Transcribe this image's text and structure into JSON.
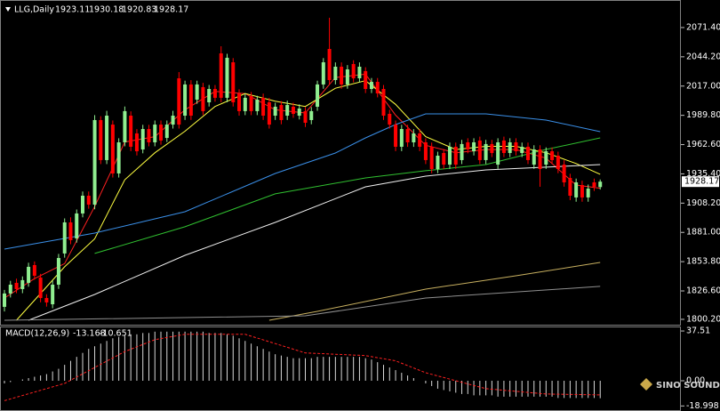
{
  "chart_data": [
    {
      "type": "candlestick",
      "title": "LLG,Daily",
      "up_color": "#90ee90",
      "down_color": "#ff0000",
      "open": [
        1811.8,
        1824.2,
        1834.1,
        1828.3,
        1834.1,
        1850.6,
        1839.0,
        1820.0,
        1814.2,
        1832.4,
        1861.4,
        1890.3,
        1875.4,
        1898.6,
        1915.1,
        1906.8,
        1985.4,
        1948.2,
        1981.2,
        1935.8,
        1964.7,
        1989.5,
        1973.0,
        1958.1,
        1977.1,
        1964.7,
        1981.2,
        1968.8,
        1981.2,
        2024.2,
        1989.5,
        2018.5,
        2004.4,
        2016.0,
        2001.9,
        2014.3,
        2047.4,
        2006.1,
        2039.1,
        2010.2,
        1993.7,
        2007.7,
        1993.7,
        2006.1,
        2001.9,
        1989.5,
        1999.4,
        1989.5,
        1997.8,
        1989.5,
        1993.7,
        1985.4,
        1997.8,
        2018.5,
        2051.5,
        2022.6,
        2035.0,
        2018.5,
        2037.5,
        2024.2,
        2030.9,
        2014.3,
        2020.9,
        2014.3,
        1991.2,
        1981.2,
        1960.6,
        1977.1,
        1964.7,
        1973.0,
        1964.7,
        1960.6,
        1939.9,
        1954.8,
        1944.0,
        1960.6,
        1948.2,
        1964.7,
        1956.4,
        1966.4,
        1948.2,
        1963.1,
        1944.0,
        1966.4,
        1954.8,
        1964.7,
        1954.8,
        1960.6,
        1944.0,
        1958.1,
        1944.0,
        1956.4,
        1952.3,
        1944.0,
        1931.6,
        1913.5,
        1925.0,
        1913.5,
        1927.5,
        1923.11
      ],
      "high": [
        1827.5,
        1836.0,
        1838.0,
        1840.1,
        1852.8,
        1854.0,
        1842.5,
        1823.5,
        1836.2,
        1861.0,
        1894.0,
        1895.0,
        1902.3,
        1919.0,
        1919.0,
        1990.0,
        1989.0,
        1994.0,
        1985.0,
        1968.5,
        1998.0,
        1993.5,
        1977.0,
        1981.0,
        1981.0,
        1985.0,
        1985.0,
        1985.0,
        1994.0,
        2030.0,
        2022.0,
        2022.5,
        2022.0,
        2020.0,
        2018.0,
        2018.0,
        2054.0,
        2047.0,
        2043.0,
        2014.0,
        2010.0,
        2011.5,
        2008.0,
        2010.0,
        2006.0,
        2001.5,
        2003.0,
        2003.5,
        2001.5,
        2000.0,
        1997.5,
        1997.5,
        2022.0,
        2043.0,
        2080.5,
        2039.0,
        2039.0,
        2036.5,
        2041.0,
        2039.0,
        2034.5,
        2024.5,
        2024.5,
        2018.0,
        1995.0,
        1985.0,
        1981.0,
        1981.0,
        1977.0,
        1977.0,
        1968.5,
        1964.5,
        1956.0,
        1958.5,
        1964.5,
        1964.5,
        1967.0,
        1968.5,
        1968.5,
        1970.0,
        1967.0,
        1967.0,
        1968.5,
        1970.0,
        1968.5,
        1968.5,
        1964.5,
        1964.5,
        1962.0,
        1962.0,
        1960.0,
        1960.0,
        1956.0,
        1948.0,
        1935.5,
        1931.0,
        1929.0,
        1925.5,
        1931.0,
        1930.18
      ],
      "low": [
        1807.5,
        1820.5,
        1824.5,
        1824.5,
        1830.5,
        1837.0,
        1816.0,
        1812.0,
        1810.5,
        1828.5,
        1857.5,
        1870.0,
        1871.5,
        1895.0,
        1903.0,
        1902.5,
        1944.5,
        1944.5,
        1932.0,
        1932.0,
        1961.0,
        1956.5,
        1952.5,
        1954.5,
        1961.0,
        1961.0,
        1962.5,
        1965.0,
        1977.5,
        1977.5,
        1985.5,
        1985.5,
        2000.5,
        1990.0,
        1998.0,
        2002.5,
        2002.0,
        2002.0,
        1998.0,
        1989.5,
        1990.0,
        1990.0,
        1990.0,
        1985.5,
        1977.5,
        1985.5,
        1981.5,
        1985.5,
        1987.5,
        1986.0,
        1979.0,
        1981.5,
        1994.0,
        2014.5,
        2018.5,
        2018.5,
        2014.5,
        2014.5,
        2020.5,
        2020.5,
        2010.5,
        2010.5,
        2006.5,
        1985.5,
        1977.5,
        1956.5,
        1956.5,
        1960.5,
        1960.5,
        1956.5,
        1944.5,
        1936.0,
        1936.0,
        1940.0,
        1940.0,
        1940.0,
        1944.5,
        1954.5,
        1952.5,
        1944.5,
        1944.5,
        1951.0,
        1940.0,
        1951.0,
        1951.0,
        1952.5,
        1951.0,
        1944.5,
        1940.0,
        1923.4,
        1940.0,
        1944.5,
        1936.0,
        1923.5,
        1911.0,
        1909.5,
        1909.5,
        1909.5,
        1919.5,
        1920.83
      ],
      "close": [
        1824.2,
        1832.4,
        1828.3,
        1836.6,
        1849.0,
        1840.7,
        1820.0,
        1815.9,
        1832.4,
        1857.2,
        1890.3,
        1873.8,
        1898.6,
        1915.1,
        1906.8,
        1985.4,
        1948.2,
        1989.5,
        1935.8,
        1964.7,
        1993.7,
        1960.6,
        1956.4,
        1977.1,
        1964.7,
        1981.2,
        1966.4,
        1981.2,
        1989.5,
        1981.2,
        2018.5,
        1989.5,
        2018.5,
        1993.7,
        2014.3,
        2006.1,
        2006.1,
        2043.3,
        2001.9,
        1993.7,
        2006.1,
        1993.7,
        2004.4,
        1989.5,
        1981.2,
        1997.8,
        1985.4,
        1999.4,
        1991.2,
        1996.1,
        1982.9,
        1993.7,
        2018.5,
        2039.1,
        2022.6,
        2035.0,
        2018.5,
        2032.5,
        2024.2,
        2035.0,
        2014.3,
        2020.9,
        2010.2,
        1989.5,
        1981.2,
        1960.6,
        1977.1,
        1964.7,
        1973.0,
        1960.6,
        1948.2,
        1939.9,
        1952.3,
        1944.0,
        1960.6,
        1944.0,
        1963.1,
        1958.1,
        1964.7,
        1948.2,
        1963.1,
        1954.8,
        1964.7,
        1954.8,
        1964.7,
        1956.4,
        1960.6,
        1948.2,
        1958.1,
        1939.9,
        1956.4,
        1948.2,
        1939.9,
        1927.5,
        1915.1,
        1927.5,
        1913.5,
        1921.7,
        1923.4,
        1928.17
      ],
      "lines": [
        {
          "color": "#ff2020",
          "x": [
            0,
            5,
            10,
            15,
            20,
            25,
            30,
            35,
            40,
            45,
            50,
            55,
            60,
            65,
            70,
            75,
            80,
            85,
            90,
            95,
            99
          ],
          "values": [
            1820,
            1838,
            1852,
            1905,
            1965,
            1970,
            1995,
            2012,
            2010,
            1995,
            1992,
            2025,
            2028,
            1990,
            1962,
            1955,
            1958,
            1958,
            1950,
            1925,
            1922
          ]
        },
        {
          "color": "#ffff40",
          "x": [
            2,
            10,
            15,
            20,
            25,
            30,
            35,
            40,
            45,
            50,
            55,
            60,
            65,
            70,
            75,
            80,
            85,
            90,
            95,
            99
          ],
          "values": [
            1799.3,
            1849,
            1875,
            1930,
            1955,
            1975,
            1998,
            2010,
            2003,
            1998,
            2015,
            2022,
            2000,
            1970,
            1958,
            1961,
            1961,
            1955,
            1945,
            1935
          ]
        },
        {
          "color": "#3a8fe8",
          "x": [
            0,
            15,
            30,
            45,
            55,
            60,
            65,
            70,
            80,
            90,
            99
          ],
          "values": [
            1865.5,
            1880.4,
            1900.2,
            1935.8,
            1954.8,
            1968.8,
            1981.2,
            1991.2,
            1991.2,
            1985.4,
            1974.6
          ]
        },
        {
          "color": "#30c030",
          "x": [
            15,
            30,
            45,
            60,
            70,
            80,
            90,
            99
          ],
          "values": [
            1861.4,
            1886.2,
            1916.8,
            1931.6,
            1938.3,
            1944.0,
            1958.1,
            1968.8
          ]
        },
        {
          "color": "#f0f0f0",
          "x": [
            4,
            15,
            30,
            45,
            60,
            70,
            80,
            90,
            99
          ],
          "values": [
            1799.3,
            1823.3,
            1859.7,
            1890.3,
            1923.4,
            1933.3,
            1939.1,
            1941.6,
            1944.0
          ]
        },
        {
          "color": "#c8b060",
          "x": [
            44,
            52,
            70,
            85,
            99
          ],
          "values": [
            1799.3,
            1807.6,
            1828.3,
            1840.7,
            1853.1
          ]
        },
        {
          "color": "#909090",
          "x": [
            0,
            50,
            70,
            99
          ],
          "values": [
            1799.3,
            1803.5,
            1820.0,
            1830.8
          ]
        }
      ],
      "ylim": [
        1795.2,
        2097.0
      ],
      "yticks": [
        {
          "value": 2071.4,
          "label": "2071.40"
        },
        {
          "value": 2044.2,
          "label": "2044.20"
        },
        {
          "value": 2017.0,
          "label": "2017.00"
        },
        {
          "value": 1989.8,
          "label": "1989.80"
        },
        {
          "value": 1962.6,
          "label": "1962.60"
        },
        {
          "value": 1935.4,
          "label": "1935.40"
        },
        {
          "value": 1908.2,
          "label": "1908.20"
        },
        {
          "value": 1881.0,
          "label": "1881.00"
        },
        {
          "value": 1853.8,
          "label": "1853.80"
        },
        {
          "value": 1826.6,
          "label": "1826.60"
        },
        {
          "value": 1800.2,
          "label": "1800.20"
        }
      ]
    },
    {
      "type": "bar",
      "title": "MACD(12,26,9)",
      "color": "#d8d8d8",
      "values": [
        -2,
        -1,
        0,
        1,
        2,
        3,
        4,
        5,
        7,
        9,
        12,
        15,
        18,
        21,
        24,
        26,
        28,
        30,
        32,
        33,
        34,
        35,
        35,
        36,
        36,
        37,
        37,
        37,
        37,
        37,
        37,
        37,
        37,
        37,
        36,
        36,
        36,
        35,
        34,
        32,
        30,
        28,
        26,
        24,
        22,
        20,
        19,
        18,
        17,
        17,
        17,
        17,
        18,
        18,
        18,
        18,
        18,
        18,
        18,
        18,
        17,
        16,
        14,
        12,
        10,
        8,
        6,
        4,
        2,
        0,
        -2,
        -4,
        -6,
        -7,
        -8,
        -9,
        -10,
        -10,
        -11,
        -11,
        -11,
        -11,
        -12,
        -12,
        -12,
        -12,
        -12,
        -12,
        -12,
        -12,
        -12,
        -12,
        -13,
        -13,
        -13,
        -13,
        -13,
        -13,
        -13,
        -13.168
      ],
      "signal": {
        "color": "#ff2020",
        "x": [
          0,
          10,
          15,
          20,
          25,
          30,
          40,
          45,
          50,
          60,
          65,
          70,
          80,
          90,
          99
        ],
        "values": [
          -15,
          -2,
          10,
          22,
          31,
          35,
          35,
          28,
          21,
          19,
          15,
          6,
          -6,
          -10,
          -10.651
        ]
      },
      "ylim": [
        -22.8,
        40.9
      ],
      "yticks": [
        37.51,
        {
          "value": 0,
          "label": "0.00"
        },
        -18.998
      ],
      "watermark": "SINO SOUND"
    }
  ]
}
